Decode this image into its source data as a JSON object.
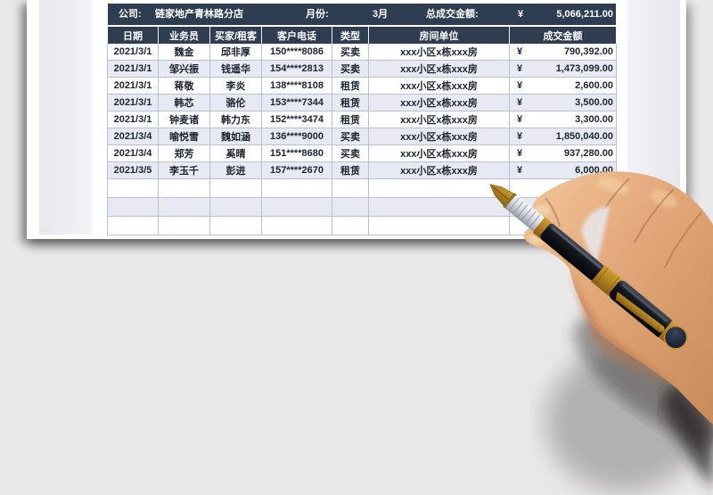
{
  "summary": {
    "company_label": "公司:",
    "company_value": "链家地产青林路分店",
    "month_label": "月份:",
    "month_value": "3月",
    "total_label": "总成交金额:",
    "currency_symbol": "¥",
    "total_value": "5,066,211.00"
  },
  "table": {
    "headers": [
      "日期",
      "业务员",
      "买家/租客",
      "客户电话",
      "类型",
      "房间单位",
      "成交金额"
    ],
    "currency_symbol": "¥",
    "rows": [
      {
        "date": "2021/3/1",
        "agent": "魏金",
        "buyer": "邱非厚",
        "phone": "150****8086",
        "type": "买卖",
        "unit": "xxx小区x栋xxx房",
        "amount": "790,392.00"
      },
      {
        "date": "2021/3/1",
        "agent": "邹兴振",
        "buyer": "钱遥华",
        "phone": "154****2813",
        "type": "买卖",
        "unit": "xxx小区x栋xxx房",
        "amount": "1,473,099.00"
      },
      {
        "date": "2021/3/1",
        "agent": "蒋敬",
        "buyer": "李炎",
        "phone": "138****8108",
        "type": "租赁",
        "unit": "xxx小区x栋xxx房",
        "amount": "2,600.00"
      },
      {
        "date": "2021/3/1",
        "agent": "韩芯",
        "buyer": "骆伦",
        "phone": "153****7344",
        "type": "租赁",
        "unit": "xxx小区x栋xxx房",
        "amount": "3,500.00"
      },
      {
        "date": "2021/3/1",
        "agent": "钟麦诸",
        "buyer": "韩力东",
        "phone": "152****3474",
        "type": "租赁",
        "unit": "xxx小区x栋xxx房",
        "amount": "3,300.00"
      },
      {
        "date": "2021/3/4",
        "agent": "喻悦雪",
        "buyer": "魏如涵",
        "phone": "136****9000",
        "type": "买卖",
        "unit": "xxx小区x栋xxx房",
        "amount": "1,850,040.00"
      },
      {
        "date": "2021/3/4",
        "agent": "郑芳",
        "buyer": "奚晴",
        "phone": "151****8680",
        "type": "买卖",
        "unit": "xxx小区x栋xxx房",
        "amount": "937,280.00"
      },
      {
        "date": "2021/3/5",
        "agent": "李玉千",
        "buyer": "彭进",
        "phone": "157****2670",
        "type": "租赁",
        "unit": "xxx小区x栋xxx房",
        "amount": "6,000.00"
      }
    ],
    "empty_row_count": 3
  },
  "decor": {
    "description": "hand holding a black and gold fountain pen over the sheet"
  },
  "colors": {
    "canvas_bg": "#e9e9ea",
    "paper": "#ffffff",
    "header_bg": "#2e3d52",
    "row_alt_bg": "#e7eaf2",
    "grid_border": "#b6c1d9",
    "text": "#1b2430",
    "pen_gold": "#d7a533",
    "pen_black": "#14171d",
    "skin": "#dfa074"
  }
}
